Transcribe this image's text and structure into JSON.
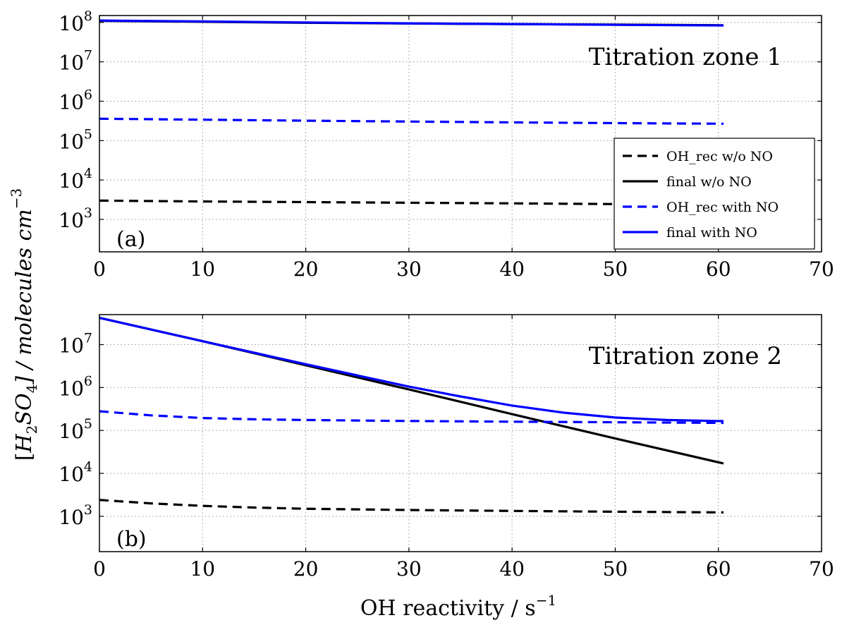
{
  "chart_data": [
    {
      "type": "line",
      "panel_tag": "(a)",
      "title": "Titration zone 1",
      "xlabel": "",
      "ylabel": "",
      "xlim": [
        0,
        70
      ],
      "x_ticks": [
        "0",
        "10",
        "20",
        "30",
        "40",
        "50",
        "60",
        "70"
      ],
      "y_scale": "log",
      "ylim": [
        150,
        150000000
      ],
      "y_ticks": [
        {
          "base": "10",
          "exp": "3",
          "value": 1000
        },
        {
          "base": "10",
          "exp": "4",
          "value": 10000
        },
        {
          "base": "10",
          "exp": "5",
          "value": 100000
        },
        {
          "base": "10",
          "exp": "6",
          "value": 1000000
        },
        {
          "base": "10",
          "exp": "7",
          "value": 10000000
        },
        {
          "base": "10",
          "exp": "8",
          "value": 100000000
        }
      ],
      "grid": true,
      "legend": {
        "position": "lower-right",
        "entries": [
          {
            "label": "OH_rec w/o NO",
            "color": "#000000",
            "style": "dashed"
          },
          {
            "label": "final w/o NO",
            "color": "#000000",
            "style": "solid"
          },
          {
            "label": "OH_rec with NO",
            "color": "#0000ff",
            "style": "dashed"
          },
          {
            "label": "final with NO",
            "color": "#0000ff",
            "style": "solid"
          }
        ]
      },
      "series": [
        {
          "key": "oh_rec_wo_no",
          "color": "#000000",
          "style": "dashed",
          "x": [
            0,
            10,
            20,
            30,
            40,
            50,
            60.5
          ],
          "y": [
            3000,
            2850,
            2750,
            2650,
            2550,
            2450,
            2350
          ]
        },
        {
          "key": "final_wo_no",
          "color": "#000000",
          "style": "solid",
          "x": [
            0,
            10,
            20,
            30,
            40,
            50,
            60.5
          ],
          "y": [
            110000000,
            104000000,
            98000000,
            94000000,
            91000000,
            88000000,
            85000000
          ]
        },
        {
          "key": "oh_rec_with_no",
          "color": "#0000ff",
          "style": "dashed",
          "x": [
            0,
            10,
            20,
            30,
            40,
            50,
            60.5
          ],
          "y": [
            360000,
            340000,
            320000,
            305000,
            290000,
            278000,
            268000
          ]
        },
        {
          "key": "final_with_no",
          "color": "#0000ff",
          "style": "solid",
          "x": [
            0,
            10,
            20,
            30,
            40,
            50,
            60.5
          ],
          "y": [
            112000000,
            106000000,
            100000000,
            95000000,
            91000000,
            87000000,
            84000000
          ]
        }
      ]
    },
    {
      "type": "line",
      "panel_tag": "(b)",
      "title": "Titration zone 2",
      "xlabel": "",
      "ylabel": "",
      "xlim": [
        0,
        70
      ],
      "x_ticks": [
        "0",
        "10",
        "20",
        "30",
        "40",
        "50",
        "60",
        "70"
      ],
      "y_scale": "log",
      "ylim": [
        150,
        50000000
      ],
      "y_ticks": [
        {
          "base": "10",
          "exp": "3",
          "value": 1000
        },
        {
          "base": "10",
          "exp": "4",
          "value": 10000
        },
        {
          "base": "10",
          "exp": "5",
          "value": 100000
        },
        {
          "base": "10",
          "exp": "6",
          "value": 1000000
        },
        {
          "base": "10",
          "exp": "7",
          "value": 10000000
        }
      ],
      "grid": true,
      "series": [
        {
          "key": "oh_rec_wo_no",
          "color": "#000000",
          "style": "dashed",
          "x": [
            0,
            5,
            10,
            15,
            20,
            30,
            40,
            50,
            60.5
          ],
          "y": [
            2400,
            2000,
            1750,
            1600,
            1500,
            1400,
            1330,
            1280,
            1230
          ]
        },
        {
          "key": "final_wo_no",
          "color": "#000000",
          "style": "solid",
          "x": [
            0,
            10,
            20,
            30,
            40,
            50,
            60.5
          ],
          "y": [
            42000000,
            12000000,
            3300000,
            900000,
            240000,
            65000,
            17000
          ]
        },
        {
          "key": "oh_rec_with_no",
          "color": "#0000ff",
          "style": "dashed",
          "x": [
            0,
            5,
            10,
            15,
            20,
            30,
            40,
            50,
            60.5
          ],
          "y": [
            280000,
            225000,
            195000,
            182000,
            175000,
            166000,
            160000,
            155000,
            150000
          ]
        },
        {
          "key": "final_with_no",
          "color": "#0000ff",
          "style": "solid",
          "x": [
            0,
            10,
            20,
            30,
            35,
            40,
            45,
            50,
            55,
            60.5
          ],
          "y": [
            42000000,
            12000000,
            3500000,
            1050000,
            620000,
            380000,
            260000,
            200000,
            175000,
            165000
          ]
        }
      ]
    }
  ],
  "shared_ylabel": {
    "bracket_open": "[",
    "h": "H",
    "sub2": "2",
    "so": "SO",
    "sub4": "4",
    "rest": "] / molecules cm",
    "sup": "−3"
  },
  "shared_xlabel": {
    "text": "OH reactivity / s",
    "sup": "−1"
  }
}
